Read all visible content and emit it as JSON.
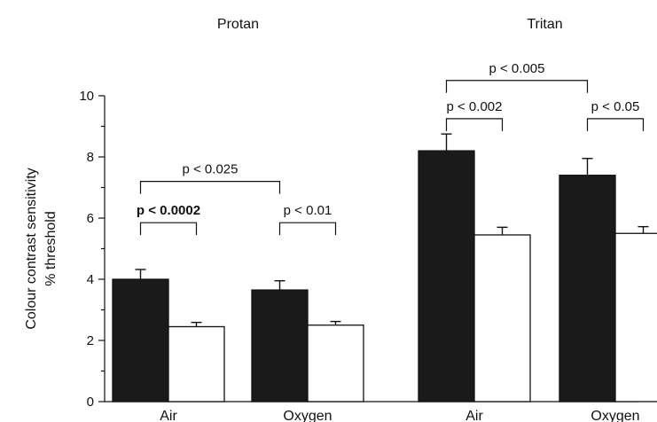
{
  "chart_data": {
    "type": "bar",
    "groups": [
      "Protan",
      "Tritan"
    ],
    "categories": [
      "Air",
      "Oxygen",
      "Air",
      "Oxygen"
    ],
    "ylabel_lines": [
      "Colour contrast sensitivity",
      "% threshold"
    ],
    "ylim": [
      0,
      10
    ],
    "yticks": [
      0,
      2,
      4,
      6,
      8,
      10
    ],
    "series": [
      {
        "color": "#1a1a1a",
        "values": [
          4.0,
          3.65,
          8.2,
          7.4
        ],
        "errors": [
          0.32,
          0.3,
          0.55,
          0.55
        ]
      },
      {
        "color": "#ffffff",
        "values": [
          2.45,
          2.5,
          5.45,
          5.5
        ],
        "errors": [
          0.14,
          0.12,
          0.25,
          0.22
        ]
      }
    ],
    "comparisons": [
      {
        "label": "p < 0.0002",
        "bold": true,
        "from": [
          0,
          0
        ],
        "to": [
          0,
          1
        ],
        "y": 5.85
      },
      {
        "label": "p < 0.01",
        "bold": false,
        "from": [
          1,
          0
        ],
        "to": [
          1,
          1
        ],
        "y": 5.85
      },
      {
        "label": "p < 0.025",
        "bold": false,
        "from": [
          0,
          0
        ],
        "to": [
          1,
          0
        ],
        "y": 7.2
      },
      {
        "label": "p < 0.002",
        "bold": false,
        "from": [
          2,
          0
        ],
        "to": [
          2,
          1
        ],
        "y": 9.25
      },
      {
        "label": "p < 0.05",
        "bold": false,
        "from": [
          3,
          0
        ],
        "to": [
          3,
          1
        ],
        "y": 9.25
      },
      {
        "label": "p < 0.005",
        "bold": false,
        "from": [
          2,
          0
        ],
        "to": [
          3,
          0
        ],
        "y": 10.5
      }
    ]
  }
}
